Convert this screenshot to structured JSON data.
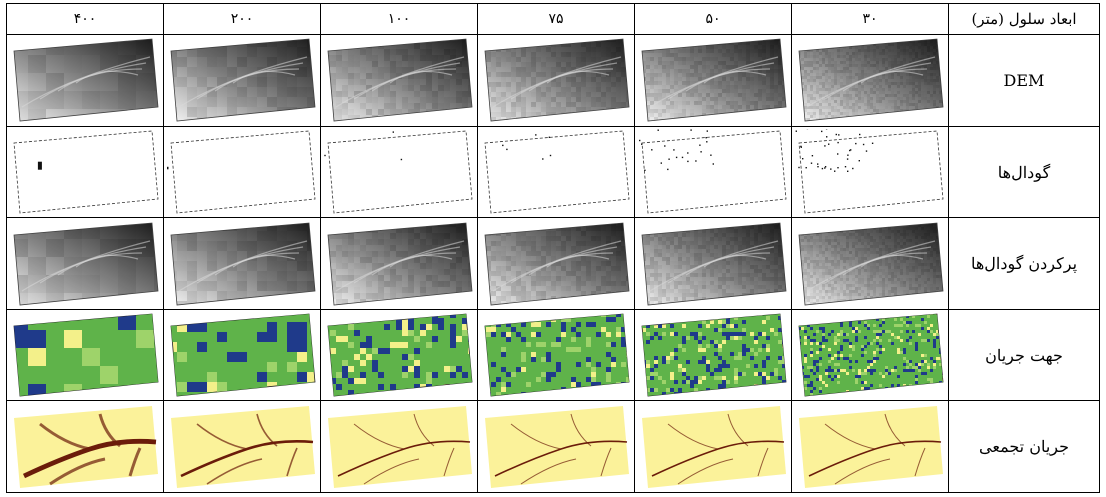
{
  "table": {
    "corner_label": "ابعاد سلول (متر)",
    "columns": [
      "۳۰",
      "۵۰",
      "۷۵",
      "۱۰۰",
      "۲۰۰",
      "۴۰۰"
    ],
    "rows": [
      {
        "label": "DEM",
        "kind": "dem"
      },
      {
        "label": "گودال‌ها",
        "kind": "sinks"
      },
      {
        "label": "پرکردن گودال‌ها",
        "kind": "fill"
      },
      {
        "label": "جهت جریان",
        "kind": "flowdir"
      },
      {
        "label": "جریان تجمعی",
        "kind": "flowacc"
      }
    ]
  },
  "colors": {
    "dem_dark": "#1a1a1a",
    "dem_light": "#f4f4f4",
    "flowdir_yellow": "#f3f08a",
    "flowdir_green": "#5fb34a",
    "flowdir_blue": "#1f3a8a",
    "flowacc_background": "#fbf29a",
    "flowacc_stream": "#6b1c0a"
  }
}
